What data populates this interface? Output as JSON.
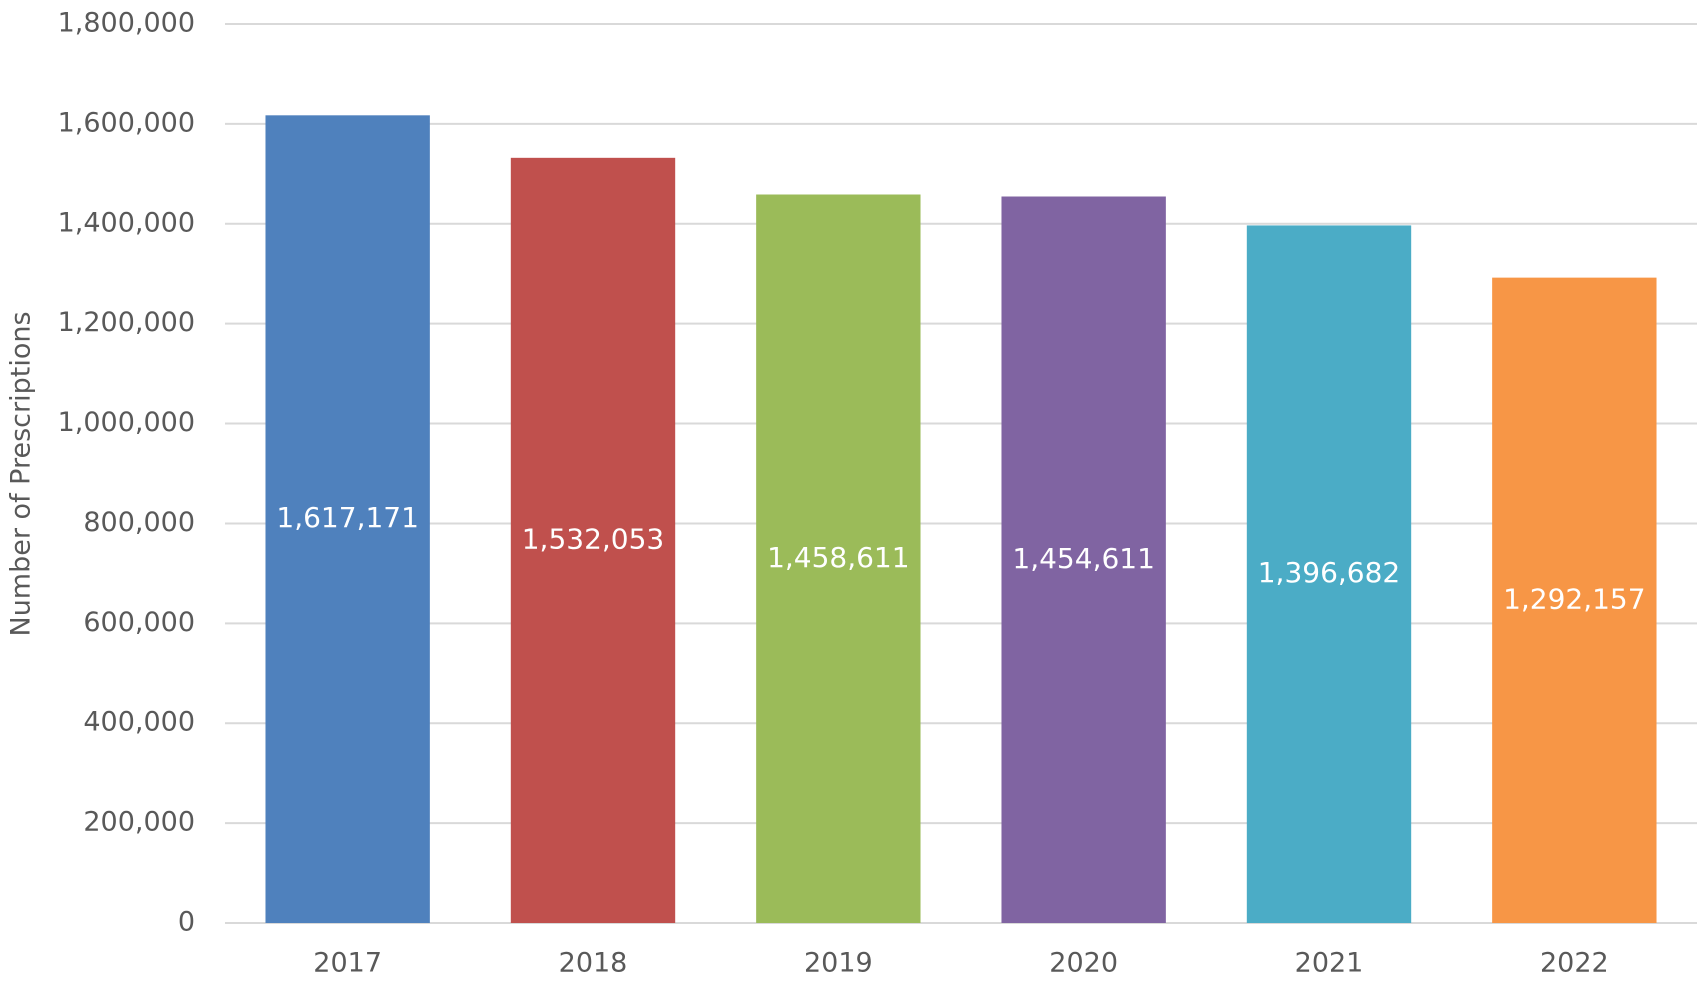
{
  "chart_data": {
    "type": "bar",
    "y_label": "Number of Prescriptions",
    "categories": [
      "2017",
      "2018",
      "2019",
      "2020",
      "2021",
      "2022"
    ],
    "values": [
      1617171,
      1532053,
      1458611,
      1454611,
      1396682,
      1292157
    ],
    "value_labels": [
      "1,617,171",
      "1,532,053",
      "1,458,611",
      "1,454,611",
      "1,396,682",
      "1,292,157"
    ],
    "colors": [
      "#4f81bd",
      "#c0504d",
      "#9bbb59",
      "#8064a2",
      "#4bacc6",
      "#f79646"
    ],
    "ylim": [
      0,
      1800000
    ],
    "yticks": [
      0,
      {
        "value": 200000,
        "label": "200,000"
      },
      {
        "value": 400000,
        "label": "400,000"
      },
      {
        "value": 600000,
        "label": "600,000"
      },
      {
        "value": 800000,
        "label": "800,000"
      },
      {
        "value": 1000000,
        "label": "1,000,000"
      },
      {
        "value": 1200000,
        "label": "1,200,000"
      },
      {
        "value": 1400000,
        "label": "1,400,000"
      },
      {
        "value": 1600000,
        "label": "1,600,000"
      },
      {
        "value": 1800000,
        "label": "1,800,000"
      }
    ],
    "grid": true
  }
}
